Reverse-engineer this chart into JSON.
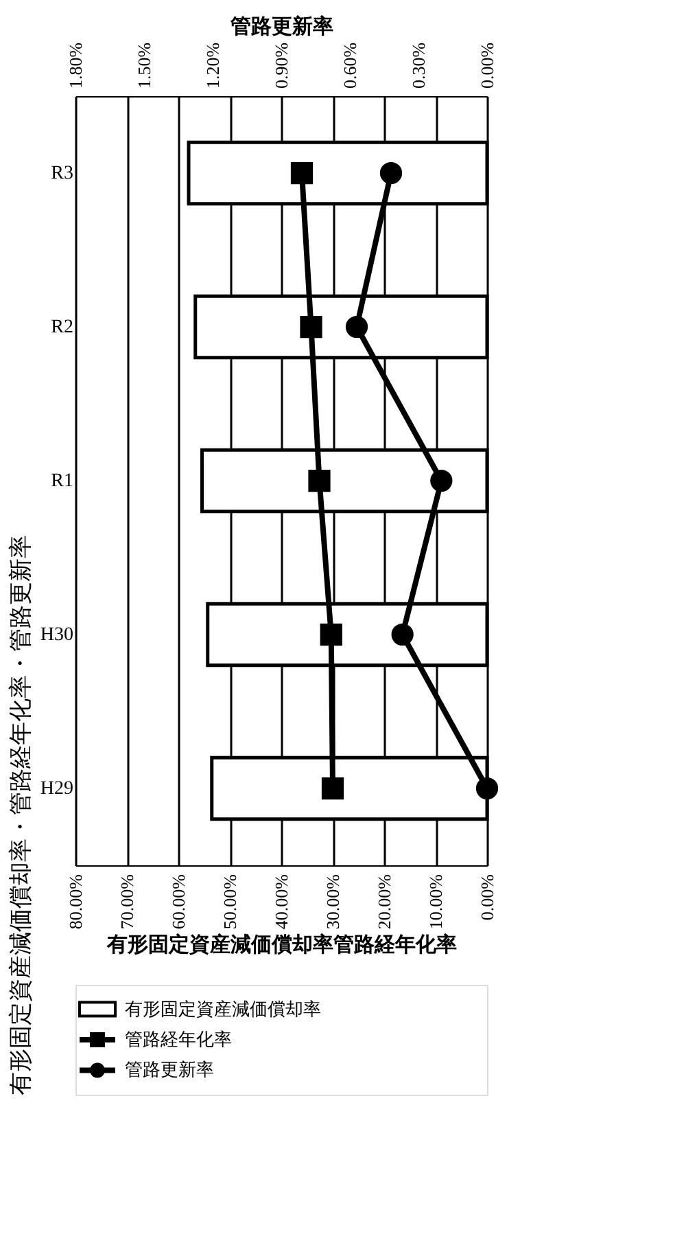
{
  "chart_data": {
    "type": "bar",
    "orientation": "horizontal",
    "title": "有形固定資産減価償却率・管路経年化率・管路更新率",
    "xlabel": "有形固定資産減価償却率管路経年化率",
    "x2label": "管路更新率",
    "categories": [
      "R3",
      "R2",
      "R1",
      "H30",
      "H29"
    ],
    "series": [
      {
        "name": "有形固定資産減価償却率",
        "color": "#ffffff",
        "values": [
          58.0,
          56.7,
          55.4,
          54.3,
          53.5
        ]
      },
      {
        "name": "管路経年化率",
        "type": "line",
        "color": "#000000",
        "marker": "square",
        "values": [
          36.0,
          34.2,
          32.6,
          30.3,
          30.0
        ]
      },
      {
        "name": "管路更新率",
        "type": "line",
        "color": "#000000",
        "marker": "circle",
        "axis": "x2",
        "values": [
          0.42,
          0.57,
          0.2,
          0.37,
          0.0
        ]
      }
    ],
    "xlim": [
      80,
      0
    ],
    "xticks": [
      {
        "value": 80,
        "label": "80.00%"
      },
      {
        "value": 70,
        "label": "70.00%"
      },
      {
        "value": 60,
        "label": "60.00%"
      },
      {
        "value": 50,
        "label": "50.00%"
      },
      {
        "value": 40,
        "label": "40.00%"
      },
      {
        "value": 30,
        "label": "30.00%"
      },
      {
        "value": 20,
        "label": "20.00%"
      },
      {
        "value": 10,
        "label": "10.00%"
      },
      {
        "value": 0,
        "label": "0.00%"
      }
    ],
    "x2lim": [
      1.8,
      0
    ],
    "x2ticks": [
      {
        "value": 1.8,
        "label": "1.80%"
      },
      {
        "value": 1.5,
        "label": "1.50%"
      },
      {
        "value": 1.2,
        "label": "1.20%"
      },
      {
        "value": 0.9,
        "label": "0.90%"
      },
      {
        "value": 0.6,
        "label": "0.60%"
      },
      {
        "value": 0.3,
        "label": "0.30%"
      },
      {
        "value": 0,
        "label": "0.00%"
      }
    ],
    "grid": "x",
    "legend": "bottom",
    "line_style": "solid"
  }
}
